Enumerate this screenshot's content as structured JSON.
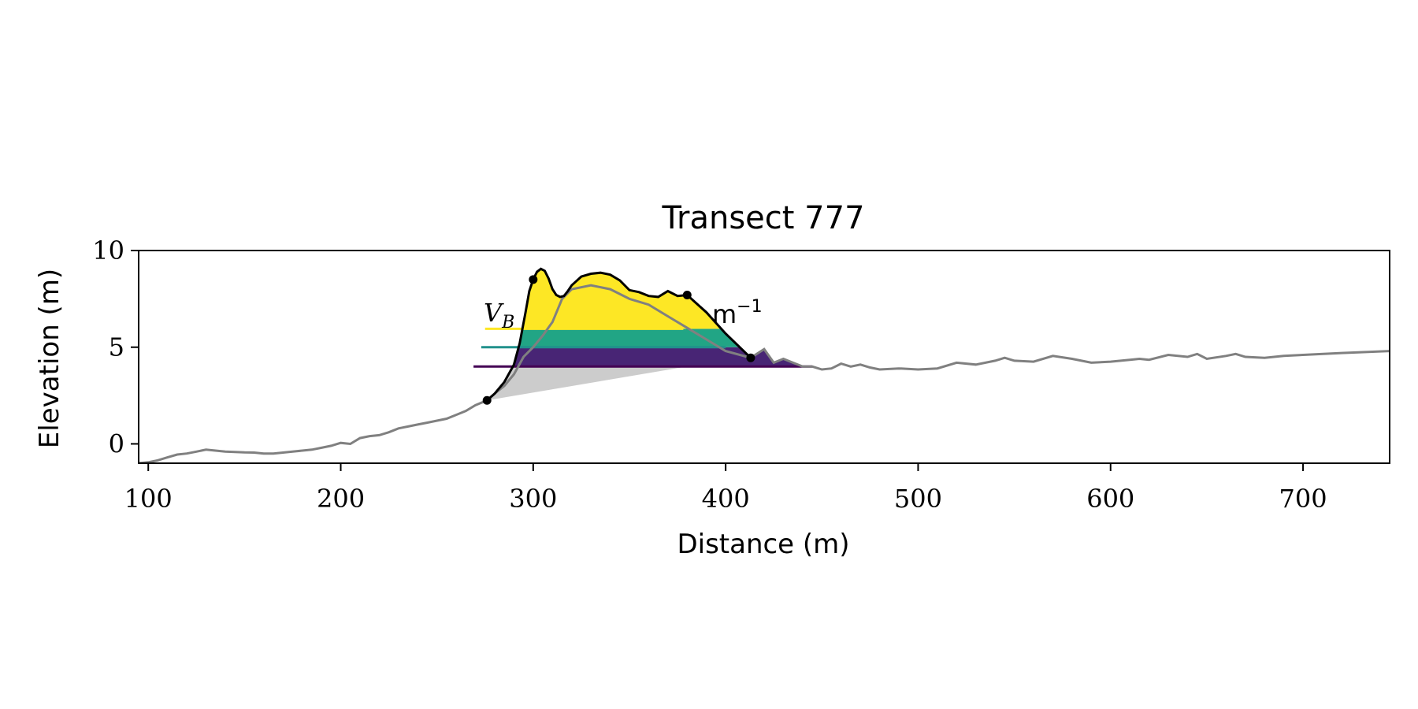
{
  "chart_data": {
    "type": "area",
    "title": "Transect 777",
    "xlabel": "Distance (m)",
    "ylabel": "Elevation (m)",
    "xlim": [
      95,
      745
    ],
    "ylim": [
      -1,
      10
    ],
    "xticks": [
      100,
      200,
      300,
      400,
      500,
      600,
      700
    ],
    "yticks": [
      0,
      5,
      10
    ],
    "grid": false,
    "colors": {
      "profile": "#808080",
      "dune_outline": "#000000",
      "beach_fill": "#cccccc",
      "band_top": "#fde725",
      "band_mid": "#21a585",
      "band_low": "#482575",
      "line_top": "#fde725",
      "line_mid": "#21918c",
      "line_low": "#440154"
    },
    "profile": {
      "x": [
        95,
        100,
        105,
        110,
        115,
        120,
        125,
        130,
        135,
        140,
        145,
        150,
        155,
        160,
        165,
        170,
        175,
        180,
        185,
        190,
        195,
        200,
        205,
        210,
        215,
        220,
        225,
        230,
        235,
        240,
        245,
        250,
        255,
        260,
        265,
        270,
        276,
        280,
        285,
        290,
        295,
        300,
        305,
        310,
        315,
        320,
        330,
        340,
        350,
        360,
        370,
        380,
        390,
        400,
        413,
        420,
        425,
        430,
        435,
        440,
        445,
        450,
        455,
        460,
        465,
        470,
        475,
        480,
        490,
        500,
        510,
        520,
        530,
        540,
        545,
        550,
        560,
        570,
        580,
        590,
        600,
        610,
        615,
        620,
        630,
        640,
        645,
        650,
        660,
        665,
        670,
        680,
        690,
        700,
        720,
        745
      ],
      "y": [
        -1.0,
        -0.95,
        -0.85,
        -0.7,
        -0.55,
        -0.5,
        -0.4,
        -0.3,
        -0.35,
        -0.4,
        -0.42,
        -0.44,
        -0.45,
        -0.5,
        -0.5,
        -0.45,
        -0.4,
        -0.35,
        -0.3,
        -0.2,
        -0.1,
        0.05,
        0.0,
        0.3,
        0.4,
        0.45,
        0.6,
        0.8,
        0.9,
        1.0,
        1.1,
        1.2,
        1.3,
        1.5,
        1.7,
        2.0,
        2.25,
        2.6,
        3.0,
        3.6,
        4.5,
        5.0,
        5.6,
        6.3,
        7.5,
        8.0,
        8.2,
        8.0,
        7.5,
        7.2,
        6.6,
        6.0,
        5.4,
        4.8,
        4.45,
        4.9,
        4.2,
        4.4,
        4.2,
        4.0,
        4.0,
        3.85,
        3.9,
        4.15,
        4.0,
        4.1,
        3.95,
        3.85,
        3.9,
        3.85,
        3.9,
        4.2,
        4.1,
        4.3,
        4.45,
        4.3,
        4.25,
        4.55,
        4.4,
        4.2,
        4.25,
        4.35,
        4.4,
        4.35,
        4.6,
        4.5,
        4.65,
        4.4,
        4.55,
        4.65,
        4.5,
        4.45,
        4.55,
        4.6,
        4.7,
        4.8
      ]
    },
    "dune_outline": {
      "x": [
        276,
        280,
        285,
        290,
        293,
        296,
        298,
        300,
        302,
        304,
        306,
        308,
        310,
        312,
        314,
        316,
        318,
        320,
        325,
        330,
        335,
        340,
        345,
        350,
        355,
        360,
        365,
        370,
        375,
        380,
        390,
        400,
        413
      ],
      "y": [
        2.25,
        2.6,
        3.2,
        4.1,
        5.2,
        6.8,
        7.9,
        8.5,
        8.9,
        9.05,
        8.95,
        8.55,
        8.0,
        7.7,
        7.6,
        7.65,
        7.9,
        8.2,
        8.65,
        8.8,
        8.85,
        8.75,
        8.45,
        7.95,
        7.85,
        7.65,
        7.6,
        7.9,
        7.65,
        7.7,
        6.8,
        5.7,
        4.45
      ]
    },
    "key_points": [
      {
        "x": 276,
        "y": 2.25
      },
      {
        "x": 300,
        "y": 8.5
      },
      {
        "x": 380,
        "y": 7.7
      },
      {
        "x": 413,
        "y": 4.45
      }
    ],
    "beach_fill_top": {
      "x": [
        276,
        380
      ],
      "y": [
        2.25,
        4.0
      ]
    },
    "bands": [
      {
        "level": 4.0,
        "top": 5.0,
        "line_start_x": 269,
        "color_key": "band_low",
        "line_key": "line_low"
      },
      {
        "level": 5.0,
        "top": 5.95,
        "line_start_x": 273,
        "color_key": "band_mid",
        "line_key": "line_mid"
      },
      {
        "level": 5.95,
        "top": 9.1,
        "line_start_x": 275,
        "color_key": "band_top",
        "line_key": "line_top"
      }
    ],
    "annotations": {
      "vb_label": "V",
      "vb_sub": "B",
      "unit_prefix": "m",
      "unit_sup": "−1"
    }
  }
}
